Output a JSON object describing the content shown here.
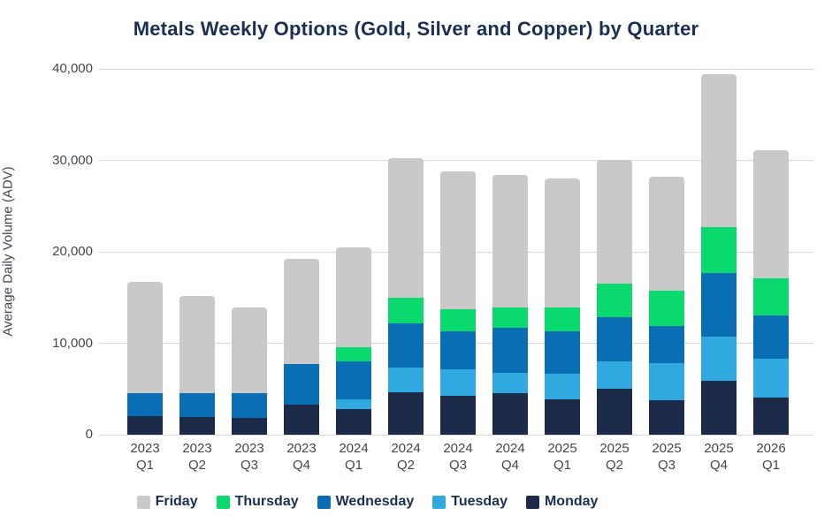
{
  "header": {
    "title": "Metals Weekly Options (Gold, Silver and Copper) by Quarter"
  },
  "chart_data": {
    "type": "bar",
    "stacked": true,
    "title": "Metals Weekly Options (Gold, Silver and Copper) by Quarter",
    "xlabel": "",
    "ylabel": "Average Daily Volume (ADV)",
    "ylim": [
      0,
      40000
    ],
    "ytick_interval": 10000,
    "ytick_labels": [
      "0",
      "10,000",
      "20,000",
      "30,000",
      "40,000"
    ],
    "grid": "horizontal",
    "legend_position": "bottom",
    "categories": [
      "2023 Q1",
      "2023 Q2",
      "2023 Q3",
      "2023 Q4",
      "2024 Q1",
      "2024 Q2",
      "2024 Q3",
      "2024 Q4",
      "2025 Q1",
      "2025 Q2",
      "2025 Q3",
      "2025 Q4",
      "2026 Q1"
    ],
    "series": [
      {
        "name": "Monday",
        "color": "#1b2a49",
        "values": [
          2000,
          1900,
          1800,
          3300,
          2800,
          4600,
          4300,
          4500,
          3900,
          5000,
          3800,
          5900,
          4100
        ]
      },
      {
        "name": "Tuesday",
        "color": "#2fa9e0",
        "values": [
          0,
          0,
          0,
          0,
          1100,
          2700,
          2900,
          2300,
          2800,
          3000,
          4000,
          4800,
          4200
        ]
      },
      {
        "name": "Wednesday",
        "color": "#0a6eb4",
        "values": [
          2500,
          2600,
          2700,
          4400,
          4100,
          4900,
          4100,
          4900,
          4600,
          4900,
          4100,
          7000,
          4700
        ]
      },
      {
        "name": "Thursday",
        "color": "#0ad96e",
        "values": [
          0,
          0,
          0,
          0,
          1600,
          2800,
          2400,
          2200,
          2600,
          3600,
          3900,
          5000,
          4100
        ]
      },
      {
        "name": "Friday",
        "color": "#c9c9c9",
        "values": [
          12200,
          10700,
          9400,
          11500,
          10900,
          15200,
          15100,
          14500,
          14100,
          13600,
          12400,
          16700,
          14000
        ]
      }
    ],
    "totals": [
      16700,
      15200,
      13900,
      19200,
      20500,
      30200,
      28800,
      28400,
      28000,
      30100,
      28200,
      39400,
      31100
    ],
    "legend_order": [
      "Friday",
      "Thursday",
      "Wednesday",
      "Tuesday",
      "Monday"
    ],
    "colors": {
      "monday": "#1b2a49",
      "tuesday": "#2fa9e0",
      "wednesday": "#0a6eb4",
      "thursday": "#0ad96e",
      "friday": "#c9c9c9",
      "title_text": "#1a2f54",
      "axis_text": "#40474e",
      "gridline": "#d9d9d9"
    }
  }
}
